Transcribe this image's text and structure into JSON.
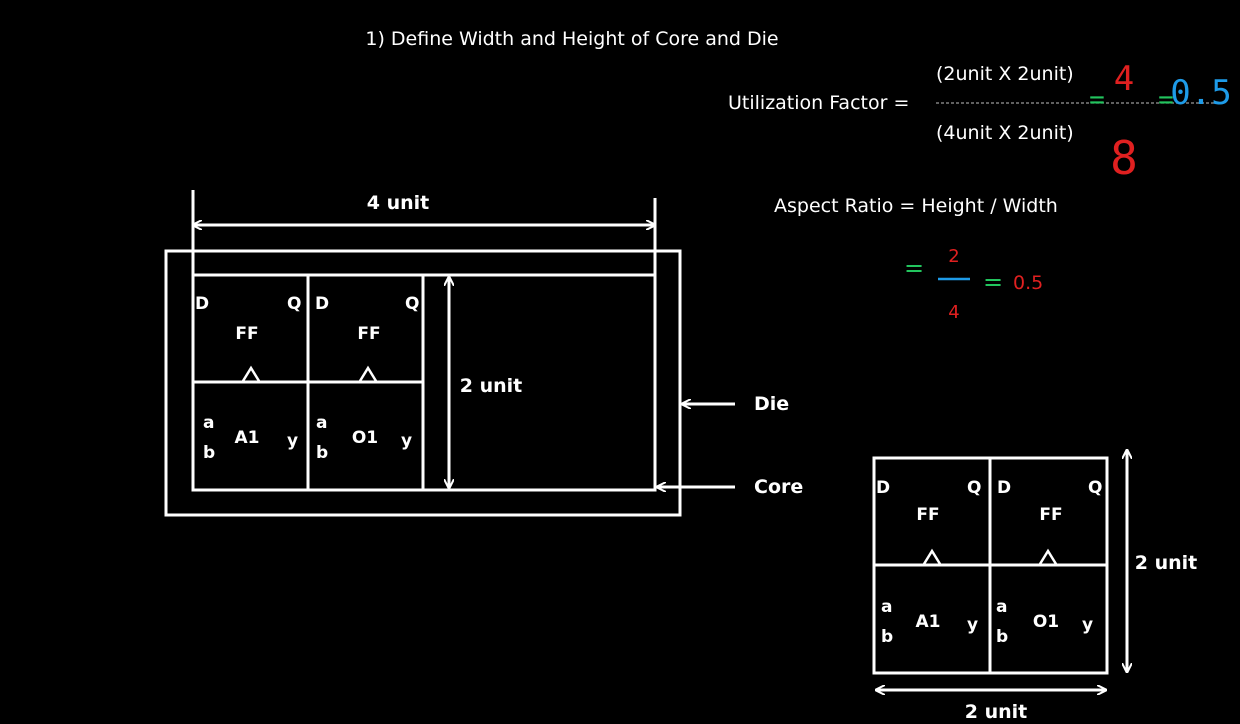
{
  "heading": "1) Define Width and Height of Core and Die",
  "utilization": {
    "label": "Utilization Factor =",
    "numerator": "(2unit X 2unit)",
    "denominator": "(4unit X 2unit)",
    "eq1": "=",
    "eq2": "=",
    "hand_num": "4",
    "hand_den": "8",
    "hand_result": "0.5",
    "colors": {
      "green": "#22c55e",
      "red": "#e02020",
      "blue": "#1e9be8"
    }
  },
  "aspect": {
    "label": "Aspect Ratio = Height / Width",
    "eq1": "=",
    "num": "2",
    "den": "4",
    "eq2": "=",
    "result": "0.5"
  },
  "floorplan": {
    "width_label": "4 unit",
    "height_label": "2 unit",
    "die_label": "Die",
    "core_label": "Core",
    "cells": {
      "ff_label": "FF",
      "d": "D",
      "q": "Q",
      "a": "a",
      "b": "b",
      "y": "y",
      "and_label": "A1",
      "or_label": "O1"
    }
  },
  "small_block": {
    "height_label": "2 unit",
    "width_label": "2 unit"
  }
}
